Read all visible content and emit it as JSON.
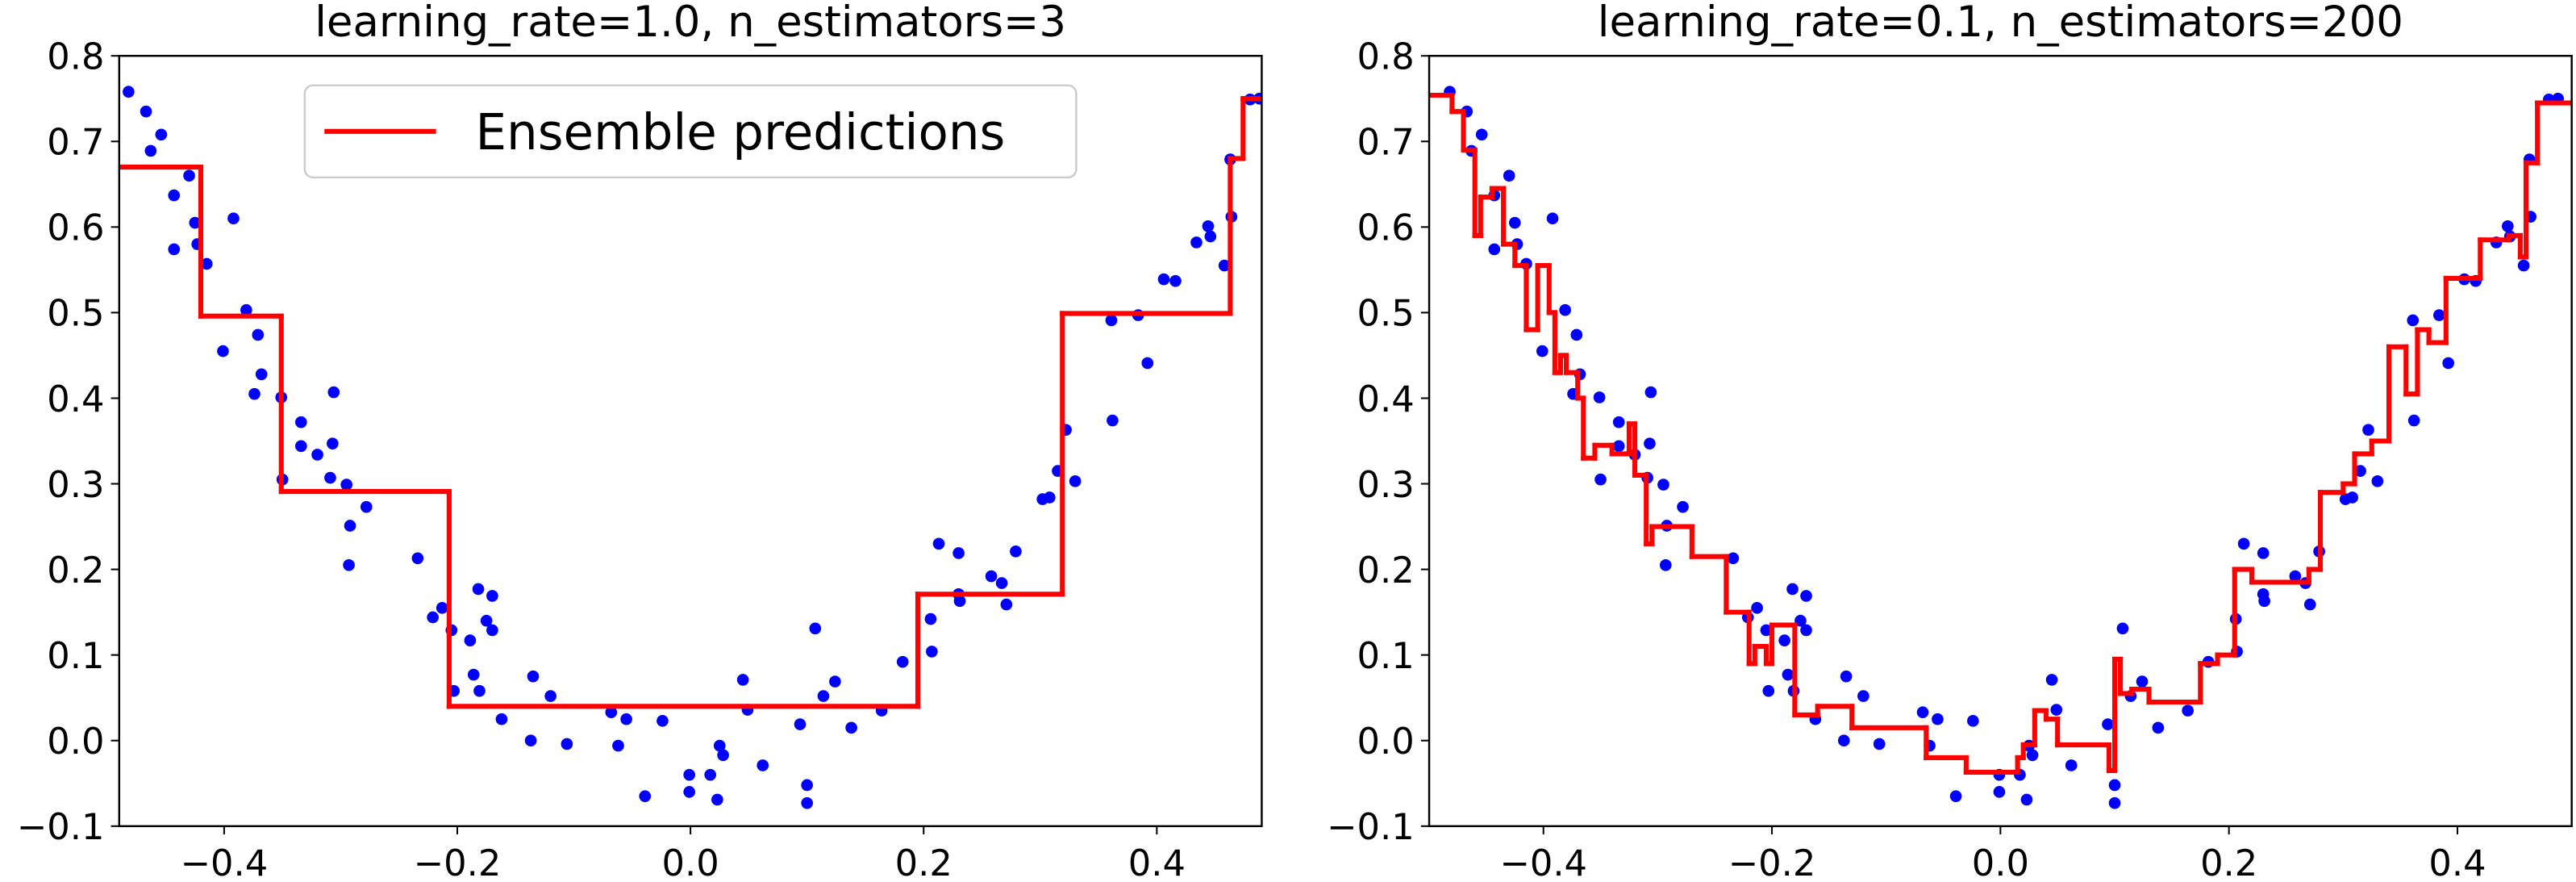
{
  "chart_data": [
    {
      "type": "line",
      "title": "learning_rate=1.0, n_estimators=3",
      "legend": "upper center",
      "xlim": [
        -0.49,
        0.49
      ],
      "ylim": [
        -0.1,
        0.8
      ],
      "xticks": [
        {
          "value": -0.4,
          "label": "−0.4"
        },
        {
          "value": -0.2,
          "label": "−0.2"
        },
        {
          "value": 0,
          "label": "0.0"
        },
        {
          "value": 0.2,
          "label": "0.2"
        },
        {
          "value": 0.4,
          "label": "0.4"
        }
      ],
      "yticks": [
        {
          "value": -0.1,
          "label": "−0.1"
        },
        {
          "value": 0,
          "label": "0.0"
        },
        {
          "value": 0.1,
          "label": "0.1"
        },
        {
          "value": 0.2,
          "label": "0.2"
        },
        {
          "value": 0.3,
          "label": "0.3"
        },
        {
          "value": 0.4,
          "label": "0.4"
        },
        {
          "value": 0.5,
          "label": "0.5"
        },
        {
          "value": 0.6,
          "label": "0.6"
        },
        {
          "value": 0.7,
          "label": "0.7"
        },
        {
          "value": 0.8,
          "label": "0.8"
        }
      ],
      "series": [
        {
          "type": "scatter",
          "color": "#0000ff",
          "x": [
            -0.482,
            -0.467,
            -0.463,
            -0.454,
            -0.443,
            -0.443,
            -0.43,
            -0.425,
            -0.423,
            -0.415,
            -0.392,
            -0.401,
            -0.381,
            -0.371,
            -0.368,
            -0.374,
            -0.351,
            -0.334,
            -0.334,
            -0.32,
            -0.307,
            -0.306,
            -0.35,
            -0.309,
            -0.295,
            -0.278,
            -0.292,
            -0.293,
            -0.234,
            -0.221,
            -0.213,
            -0.205,
            -0.189,
            -0.182,
            -0.17,
            -0.175,
            -0.17,
            -0.186,
            -0.203,
            -0.181,
            -0.162,
            -0.135,
            -0.12,
            -0.137,
            -0.106,
            -0.068,
            -0.055,
            -0.062,
            -0.024,
            -0.039,
            -0.001,
            -0.001,
            0.017,
            0.023,
            0.025,
            0.028,
            0.045,
            0.049,
            0.062,
            0.094,
            0.1,
            0.1,
            0.107,
            0.114,
            0.124,
            0.138,
            0.164,
            0.182,
            0.206,
            0.207,
            0.213,
            0.23,
            0.23,
            0.231,
            0.258,
            0.267,
            0.271,
            0.279,
            0.302,
            0.308,
            0.315,
            0.322,
            0.33,
            0.362,
            0.361,
            0.384,
            0.392,
            0.406,
            0.416,
            0.434,
            0.444,
            0.446,
            0.458,
            0.464,
            0.463,
            0.48,
            0.488
          ],
          "values": [
            0.758,
            0.735,
            0.689,
            0.708,
            0.637,
            0.574,
            0.66,
            0.605,
            0.58,
            0.557,
            0.61,
            0.455,
            0.503,
            0.474,
            0.428,
            0.405,
            0.401,
            0.372,
            0.344,
            0.334,
            0.347,
            0.407,
            0.305,
            0.307,
            0.299,
            0.273,
            0.251,
            0.205,
            0.213,
            0.144,
            0.155,
            0.129,
            0.117,
            0.177,
            0.169,
            0.14,
            0.129,
            0.077,
            0.058,
            0.058,
            0.025,
            0.075,
            0.052,
            0.0,
            -0.004,
            0.033,
            0.025,
            -0.006,
            0.023,
            -0.065,
            -0.04,
            -0.06,
            -0.04,
            -0.069,
            -0.006,
            -0.017,
            0.071,
            0.036,
            -0.029,
            0.019,
            -0.052,
            -0.073,
            0.131,
            0.052,
            0.069,
            0.015,
            0.035,
            0.092,
            0.142,
            0.104,
            0.23,
            0.219,
            0.171,
            0.163,
            0.192,
            0.184,
            0.159,
            0.221,
            0.282,
            0.284,
            0.315,
            0.363,
            0.303,
            0.374,
            0.491,
            0.497,
            0.441,
            0.539,
            0.537,
            0.582,
            0.601,
            0.589,
            0.555,
            0.612,
            0.679,
            0.749,
            0.75
          ]
        },
        {
          "type": "line",
          "name": "Ensemble predictions",
          "color": "#ff0000",
          "drawstyle": "steps-post",
          "x": [
            -0.49,
            -0.42,
            -0.351,
            -0.207,
            0.195,
            0.319,
            0.463,
            0.474
          ],
          "values": [
            0.67,
            0.496,
            0.291,
            0.04,
            0.171,
            0.499,
            0.68,
            0.75
          ]
        }
      ]
    },
    {
      "type": "line",
      "title": "learning_rate=0.1, n_estimators=200",
      "xlim": [
        -0.5,
        0.5
      ],
      "ylim": [
        -0.1,
        0.8
      ],
      "xticks": [
        {
          "value": -0.4,
          "label": "−0.4"
        },
        {
          "value": -0.2,
          "label": "−0.2"
        },
        {
          "value": 0,
          "label": "0.0"
        },
        {
          "value": 0.2,
          "label": "0.2"
        },
        {
          "value": 0.4,
          "label": "0.4"
        }
      ],
      "yticks": [
        {
          "value": -0.1,
          "label": "−0.1"
        },
        {
          "value": 0,
          "label": "0.0"
        },
        {
          "value": 0.1,
          "label": "0.1"
        },
        {
          "value": 0.2,
          "label": "0.2"
        },
        {
          "value": 0.3,
          "label": "0.3"
        },
        {
          "value": 0.4,
          "label": "0.4"
        },
        {
          "value": 0.5,
          "label": "0.5"
        },
        {
          "value": 0.6,
          "label": "0.6"
        },
        {
          "value": 0.7,
          "label": "0.7"
        },
        {
          "value": 0.8,
          "label": "0.8"
        }
      ],
      "series": [
        {
          "type": "scatter",
          "color": "#0000ff",
          "x": [
            -0.482,
            -0.467,
            -0.463,
            -0.454,
            -0.443,
            -0.443,
            -0.43,
            -0.425,
            -0.423,
            -0.415,
            -0.392,
            -0.401,
            -0.381,
            -0.371,
            -0.368,
            -0.374,
            -0.351,
            -0.334,
            -0.334,
            -0.32,
            -0.307,
            -0.306,
            -0.35,
            -0.309,
            -0.295,
            -0.278,
            -0.292,
            -0.293,
            -0.234,
            -0.221,
            -0.213,
            -0.205,
            -0.189,
            -0.182,
            -0.17,
            -0.175,
            -0.17,
            -0.186,
            -0.203,
            -0.181,
            -0.162,
            -0.135,
            -0.12,
            -0.137,
            -0.106,
            -0.068,
            -0.055,
            -0.062,
            -0.024,
            -0.039,
            -0.001,
            -0.001,
            0.017,
            0.023,
            0.025,
            0.028,
            0.045,
            0.049,
            0.062,
            0.094,
            0.1,
            0.1,
            0.107,
            0.114,
            0.124,
            0.138,
            0.164,
            0.182,
            0.206,
            0.207,
            0.213,
            0.23,
            0.23,
            0.231,
            0.258,
            0.267,
            0.271,
            0.279,
            0.302,
            0.308,
            0.315,
            0.322,
            0.33,
            0.362,
            0.361,
            0.384,
            0.392,
            0.406,
            0.416,
            0.434,
            0.444,
            0.446,
            0.458,
            0.464,
            0.463,
            0.48,
            0.488
          ],
          "values": [
            0.758,
            0.735,
            0.689,
            0.708,
            0.637,
            0.574,
            0.66,
            0.605,
            0.58,
            0.557,
            0.61,
            0.455,
            0.503,
            0.474,
            0.428,
            0.405,
            0.401,
            0.372,
            0.344,
            0.334,
            0.347,
            0.407,
            0.305,
            0.307,
            0.299,
            0.273,
            0.251,
            0.205,
            0.213,
            0.144,
            0.155,
            0.129,
            0.117,
            0.177,
            0.169,
            0.14,
            0.129,
            0.077,
            0.058,
            0.058,
            0.025,
            0.075,
            0.052,
            0.0,
            -0.004,
            0.033,
            0.025,
            -0.006,
            0.023,
            -0.065,
            -0.04,
            -0.06,
            -0.04,
            -0.069,
            -0.006,
            -0.017,
            0.071,
            0.036,
            -0.029,
            0.019,
            -0.052,
            -0.073,
            0.131,
            0.052,
            0.069,
            0.015,
            0.035,
            0.092,
            0.142,
            0.104,
            0.23,
            0.219,
            0.171,
            0.163,
            0.192,
            0.184,
            0.159,
            0.221,
            0.282,
            0.284,
            0.315,
            0.363,
            0.303,
            0.374,
            0.491,
            0.497,
            0.441,
            0.539,
            0.537,
            0.582,
            0.601,
            0.589,
            0.555,
            0.612,
            0.679,
            0.749,
            0.75
          ]
        },
        {
          "type": "line",
          "color": "#ff0000",
          "drawstyle": "steps-post",
          "x": [
            -0.5,
            -0.48,
            -0.47,
            -0.46,
            -0.455,
            -0.445,
            -0.435,
            -0.425,
            -0.415,
            -0.405,
            -0.395,
            -0.39,
            -0.385,
            -0.38,
            -0.37,
            -0.365,
            -0.355,
            -0.34,
            -0.325,
            -0.32,
            -0.31,
            -0.305,
            -0.27,
            -0.24,
            -0.22,
            -0.215,
            -0.205,
            -0.2,
            -0.18,
            -0.16,
            -0.13,
            -0.065,
            -0.03,
            0.015,
            0.02,
            0.03,
            0.04,
            0.05,
            0.095,
            0.1,
            0.105,
            0.115,
            0.13,
            0.175,
            0.19,
            0.205,
            0.22,
            0.27,
            0.28,
            0.3,
            0.31,
            0.325,
            0.34,
            0.355,
            0.365,
            0.375,
            0.39,
            0.42,
            0.445,
            0.455,
            0.46,
            0.47
          ],
          "values": [
            0.754,
            0.735,
            0.69,
            0.59,
            0.635,
            0.645,
            0.58,
            0.555,
            0.48,
            0.555,
            0.5,
            0.43,
            0.45,
            0.43,
            0.4,
            0.33,
            0.345,
            0.335,
            0.37,
            0.31,
            0.23,
            0.25,
            0.215,
            0.15,
            0.09,
            0.11,
            0.09,
            0.135,
            0.03,
            0.04,
            0.015,
            -0.02,
            -0.037,
            -0.02,
            -0.005,
            0.035,
            0.025,
            -0.005,
            -0.035,
            0.095,
            0.055,
            0.06,
            0.045,
            0.09,
            0.1,
            0.2,
            0.185,
            0.2,
            0.29,
            0.3,
            0.335,
            0.35,
            0.46,
            0.405,
            0.48,
            0.465,
            0.54,
            0.585,
            0.59,
            0.565,
            0.675,
            0.745
          ]
        }
      ]
    }
  ]
}
